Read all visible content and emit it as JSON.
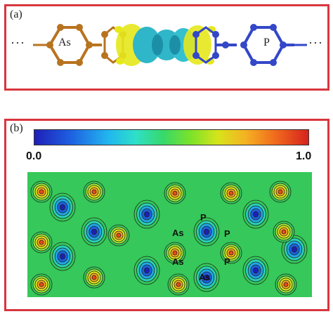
{
  "panel_a": {
    "label": "(a)",
    "left_ellipsis": "···",
    "right_ellipsis": "···",
    "as_ring_label": "As",
    "p_ring_label": "P",
    "colors": {
      "as_bond": "#b8731f",
      "p_bond": "#3347c8",
      "border": "#d9363e"
    }
  },
  "panel_b": {
    "label": "(b)",
    "colorbar": {
      "min_label": "0.0",
      "max_label": "1.0"
    },
    "atom_labels": [
      "P",
      "As",
      "P",
      "As",
      "P",
      "As"
    ]
  }
}
